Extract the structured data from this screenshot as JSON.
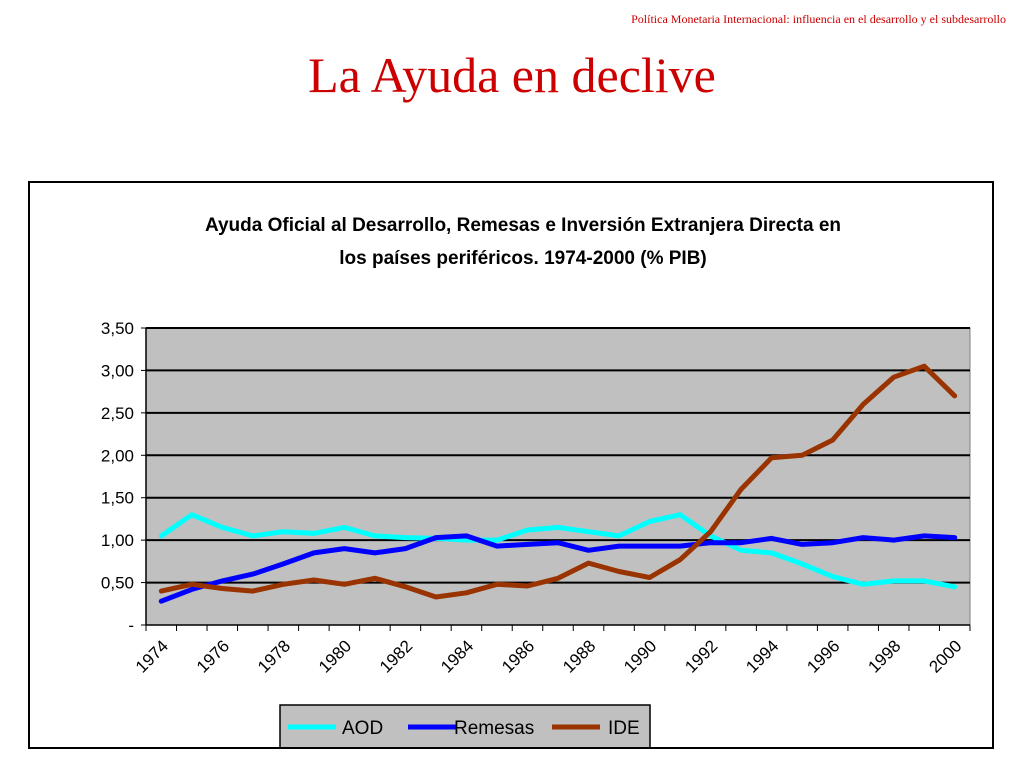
{
  "header": {
    "note": "Política Monetaria Internacional: influencia en el desarrollo y el subdesarrollo",
    "title": "La Ayuda en declive"
  },
  "chart_data": {
    "type": "line",
    "title_line1": "Ayuda Oficial al Desarrollo, Remesas e Inversión Extranjera Directa en",
    "title_line2": "los países periféricos. 1974-2000 (% PIB)",
    "x": [
      1974,
      1975,
      1976,
      1977,
      1978,
      1979,
      1980,
      1981,
      1982,
      1983,
      1984,
      1985,
      1986,
      1987,
      1988,
      1989,
      1990,
      1991,
      1992,
      1993,
      1994,
      1995,
      1996,
      1997,
      1998,
      1999,
      2000
    ],
    "x_tick_labels": [
      "1974",
      "1976",
      "1978",
      "1980",
      "1982",
      "1984",
      "1986",
      "1988",
      "1990",
      "1992",
      "1994",
      "1996",
      "1998",
      "2000"
    ],
    "y_tick_labels": [
      "-",
      "0,50",
      "1,00",
      "1,50",
      "2,00",
      "2,50",
      "3,00",
      "3,50"
    ],
    "ylim": [
      0,
      3.5
    ],
    "grid": true,
    "plot_background": "#c0c0c0",
    "legend_position": "bottom",
    "series": [
      {
        "name": "AOD",
        "color": "#00ffff",
        "values": [
          1.05,
          1.3,
          1.15,
          1.05,
          1.1,
          1.08,
          1.15,
          1.05,
          1.03,
          1.02,
          1.0,
          1.0,
          1.12,
          1.15,
          1.1,
          1.05,
          1.22,
          1.3,
          1.05,
          0.88,
          0.85,
          0.72,
          0.57,
          0.48,
          0.52,
          0.52,
          0.45
        ]
      },
      {
        "name": "Remesas",
        "color": "#0000ff",
        "values": [
          0.28,
          0.42,
          0.52,
          0.6,
          0.72,
          0.85,
          0.9,
          0.85,
          0.9,
          1.03,
          1.05,
          0.93,
          0.95,
          0.97,
          0.88,
          0.93,
          0.93,
          0.93,
          0.97,
          0.97,
          1.02,
          0.95,
          0.97,
          1.03,
          1.0,
          1.05,
          1.03
        ]
      },
      {
        "name": "IDE",
        "color": "#993300",
        "values": [
          0.4,
          0.48,
          0.43,
          0.4,
          0.48,
          0.53,
          0.48,
          0.55,
          0.45,
          0.33,
          0.38,
          0.48,
          0.46,
          0.55,
          0.73,
          0.63,
          0.56,
          0.77,
          1.1,
          1.6,
          1.97,
          2.0,
          2.18,
          2.6,
          2.92,
          3.05,
          2.7
        ]
      }
    ]
  }
}
